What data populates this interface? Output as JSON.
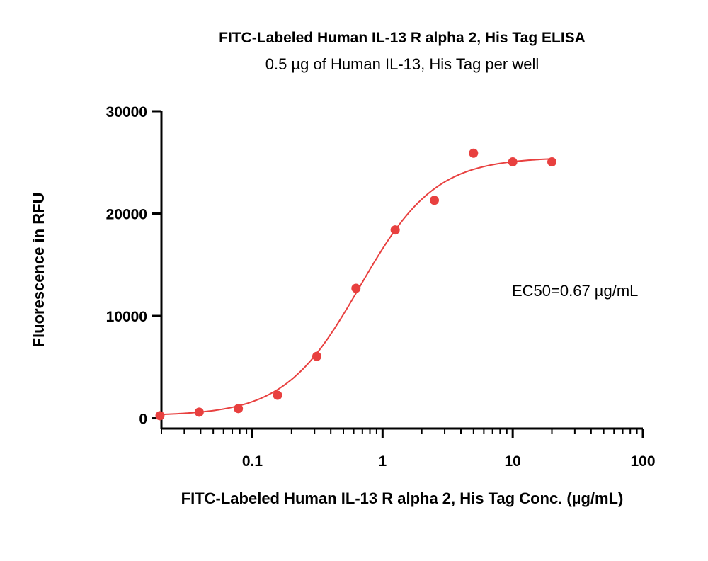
{
  "chart_data": {
    "type": "scatter",
    "title": "FITC-Labeled Human IL-13 R alpha 2, His Tag ELISA",
    "subtitle": "0.5 µg of Human IL-13, His Tag per well",
    "xlabel": "FITC-Labeled Human IL-13 R alpha 2, His Tag Conc. (µg/mL)",
    "ylabel": "Fluorescence in RFU",
    "x_scale": "log",
    "xlim": [
      0.02,
      100
    ],
    "ylim": [
      -1000,
      30000
    ],
    "x_ticks": [
      0.1,
      1,
      10,
      100
    ],
    "x_tick_labels": [
      "0.1",
      "1",
      "10",
      "100"
    ],
    "y_ticks": [
      0,
      10000,
      20000,
      30000
    ],
    "y_tick_labels": [
      "0",
      "10000",
      "20000",
      "30000"
    ],
    "grid": false,
    "color": "#e8403f",
    "series": [
      {
        "x": [
          0.0195,
          0.039,
          0.078,
          0.156,
          0.3125,
          0.625,
          1.25,
          2.5,
          5,
          10,
          20
        ],
        "y": [
          250,
          600,
          950,
          2250,
          6050,
          12700,
          18400,
          21300,
          25900,
          25050,
          25050
        ]
      }
    ],
    "fit": {
      "model": "4PL",
      "bottom": 250,
      "top": 25500,
      "ec50": 0.67,
      "hill": 1.5
    },
    "annotation": "EC50=0.67 µg/mL"
  }
}
